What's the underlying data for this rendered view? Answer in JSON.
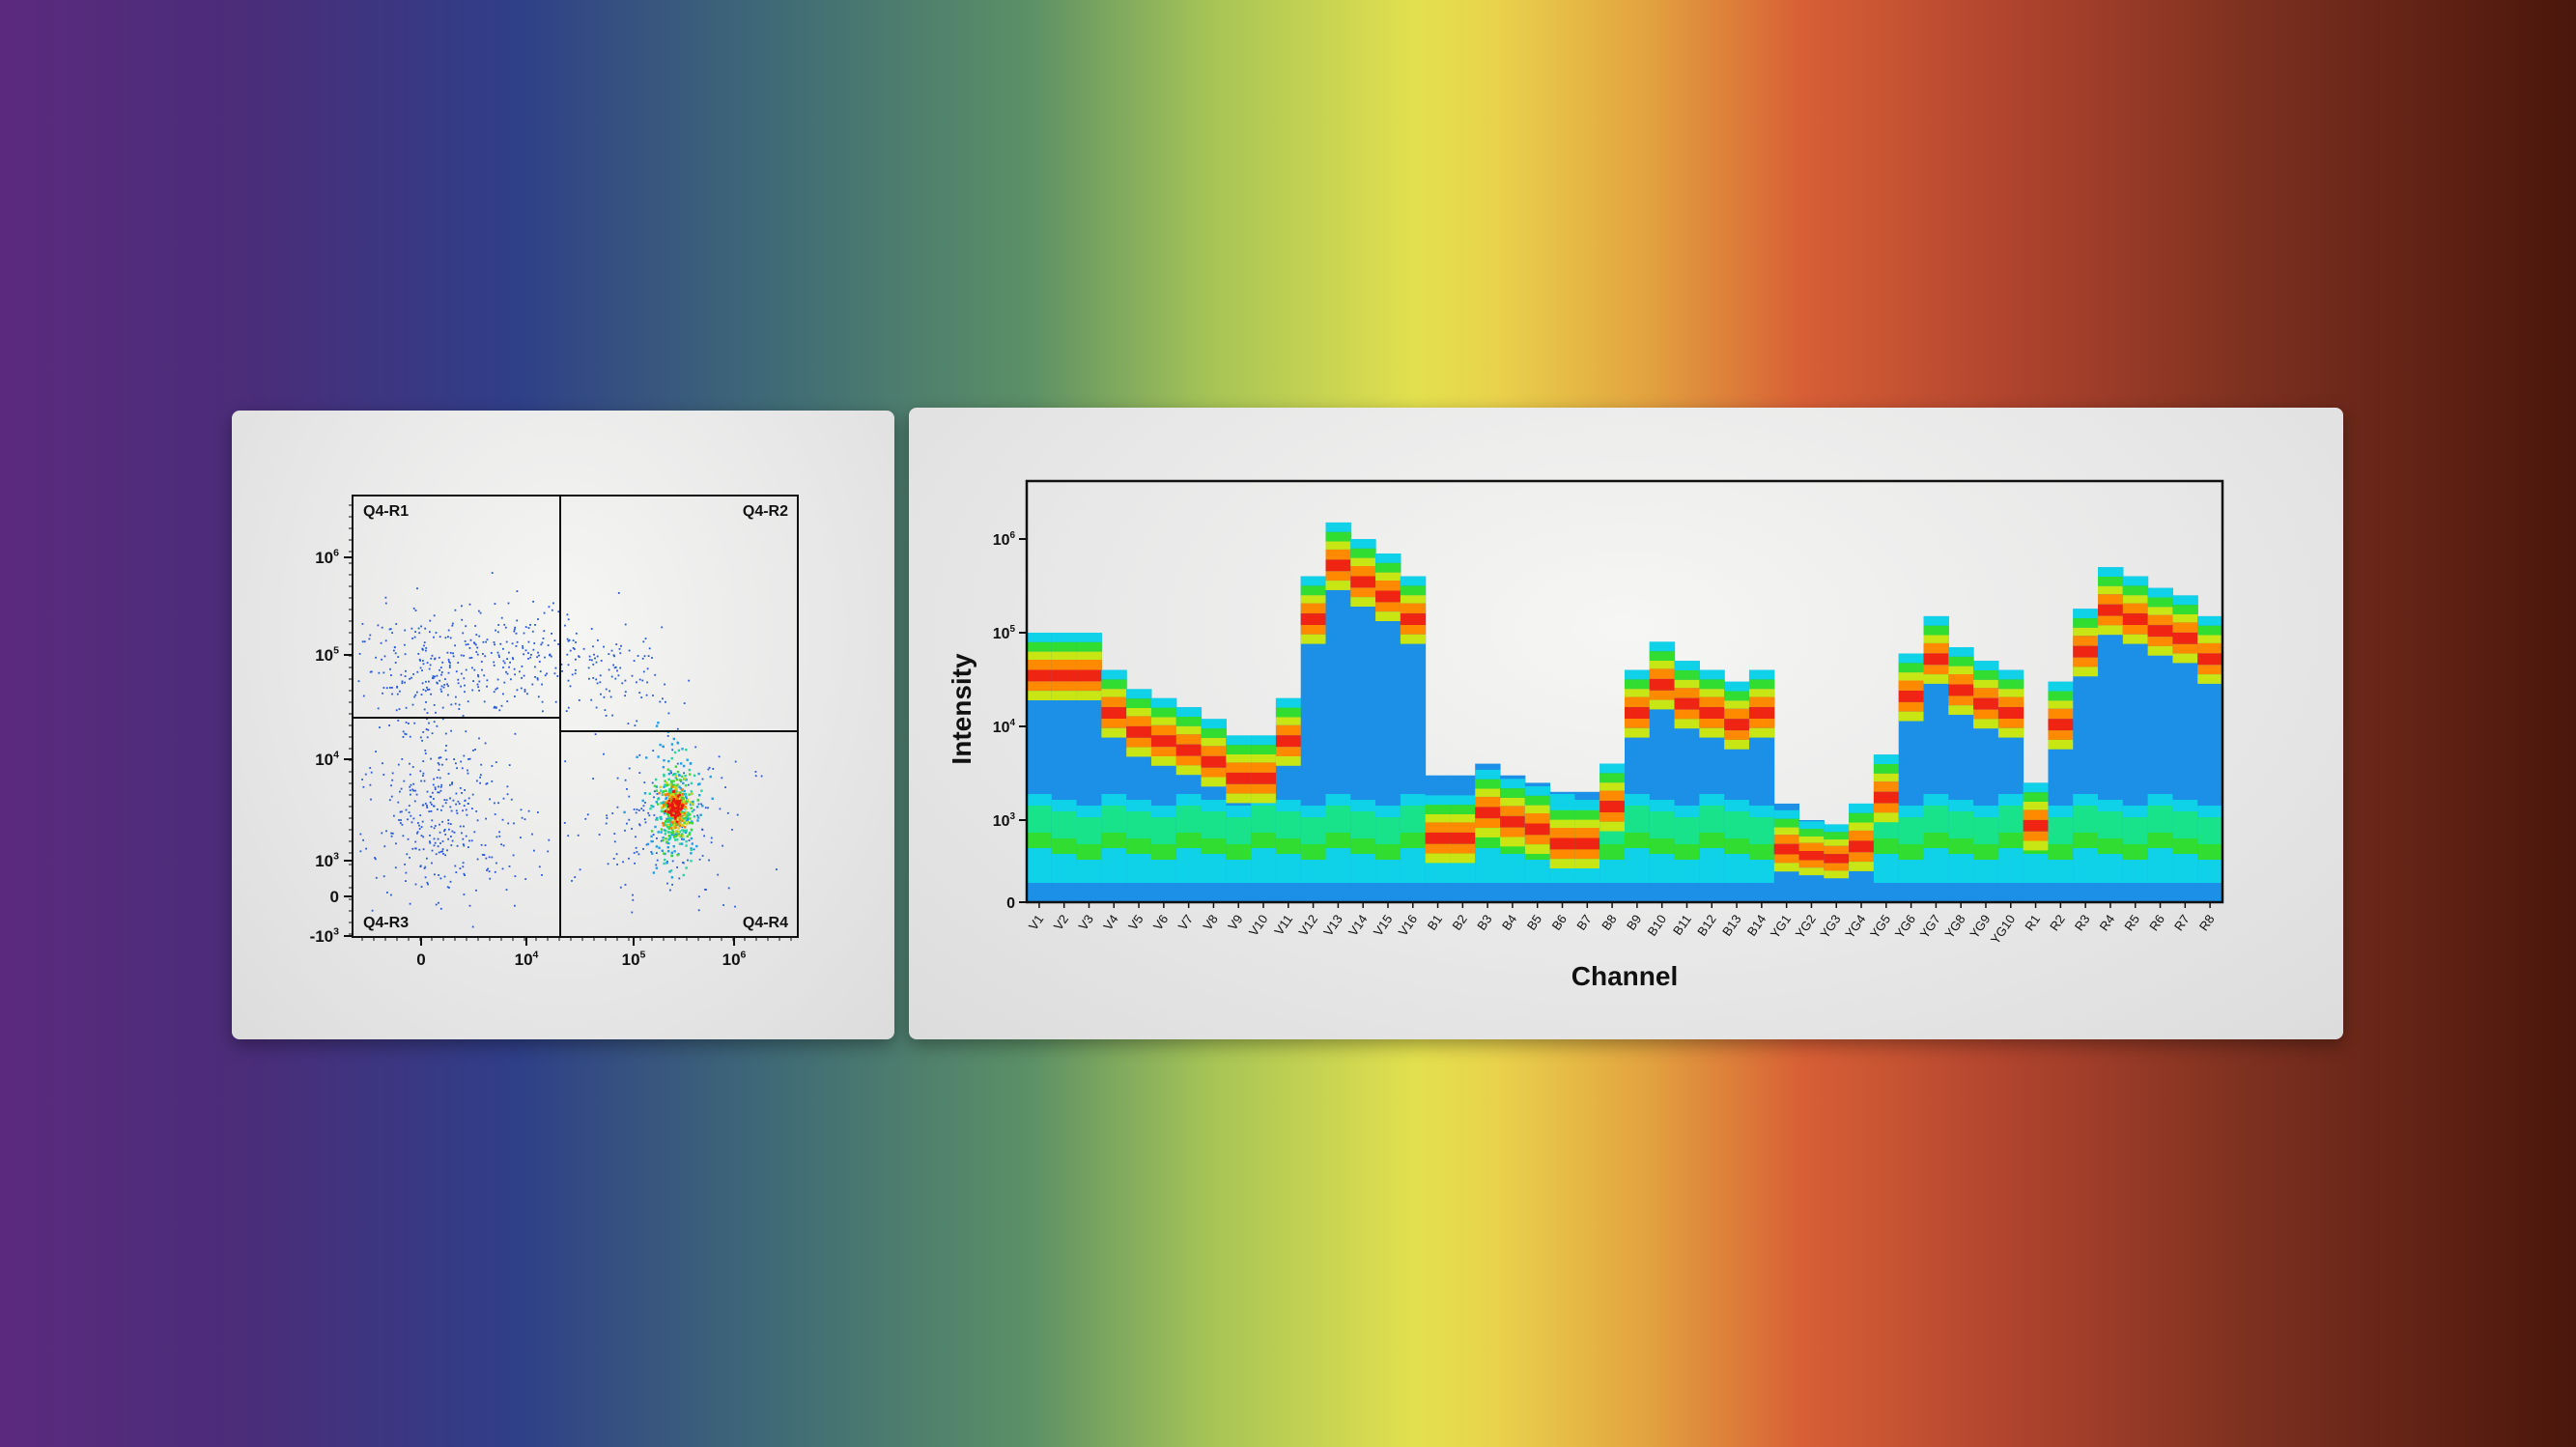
{
  "scatter_panel": {
    "gate_labels": [
      "Q4-R1",
      "Q4-R2",
      "Q4-R3",
      "Q4-R4"
    ],
    "y_ticks": [
      {
        "base": "10",
        "exp": "6"
      },
      {
        "base": "10",
        "exp": "5"
      },
      {
        "base": "10",
        "exp": "4"
      },
      {
        "base": "10",
        "exp": "3"
      },
      {
        "base": "0",
        "exp": ""
      },
      {
        "base": "-10",
        "exp": "3"
      }
    ],
    "x_ticks": [
      {
        "base": "0",
        "exp": ""
      },
      {
        "base": "10",
        "exp": "4"
      },
      {
        "base": "10",
        "exp": "5"
      },
      {
        "base": "10",
        "exp": "6"
      }
    ]
  },
  "chart_data": {
    "type": "heatmap",
    "xlabel": "Channel",
    "ylabel": "Intensity",
    "y_scale": "log",
    "y_ticks": [
      {
        "base": "0",
        "exp": ""
      },
      {
        "base": "10",
        "exp": "3"
      },
      {
        "base": "10",
        "exp": "4"
      },
      {
        "base": "10",
        "exp": "5"
      },
      {
        "base": "10",
        "exp": "6"
      }
    ],
    "categories": [
      "V1",
      "V2",
      "V3",
      "V4",
      "V5",
      "V6",
      "V7",
      "V8",
      "V9",
      "V10",
      "V11",
      "V12",
      "V13",
      "V14",
      "V15",
      "V16",
      "B1",
      "B2",
      "B3",
      "B4",
      "B5",
      "B6",
      "B7",
      "B8",
      "B9",
      "B10",
      "B11",
      "B12",
      "B13",
      "B14",
      "YG1",
      "YG2",
      "YG3",
      "YG4",
      "YG5",
      "YG6",
      "YG7",
      "YG8",
      "YG9",
      "YG10",
      "R1",
      "R2",
      "R3",
      "R4",
      "R5",
      "R6",
      "R7",
      "R8"
    ],
    "max_values": [
      100000,
      100000,
      100000,
      40000,
      25000,
      20000,
      16000,
      12000,
      8000,
      8000,
      20000,
      400000,
      1500000,
      1000000,
      700000,
      400000,
      3000,
      3000,
      4000,
      3000,
      2500,
      2000,
      2000,
      4000,
      40000,
      80000,
      50000,
      40000,
      30000,
      40000,
      1500,
      1000,
      900,
      1500,
      5000,
      60000,
      150000,
      70000,
      50000,
      40000,
      2500,
      30000,
      180000,
      500000,
      400000,
      300000,
      250000,
      150000
    ],
    "peak_values": [
      50000,
      50000,
      50000,
      20000,
      12000,
      10000,
      10000,
      7000,
      4000,
      4000,
      10000,
      200000,
      800000,
      600000,
      400000,
      200000,
      800,
      800,
      1500,
      1200,
      1000,
      700,
      700,
      1800,
      20000,
      40000,
      30000,
      22000,
      18000,
      22000,
      600,
      500,
      500,
      800,
      3000,
      30000,
      80000,
      40000,
      28000,
      22000,
      1200,
      15000,
      100000,
      250000,
      200000,
      150000,
      130000,
      80000
    ],
    "color_scale": [
      "#1c8fe6",
      "#0fd2e8",
      "#19e38a",
      "#30dd30",
      "#c8e614",
      "#ff8a00",
      "#ef2412"
    ]
  }
}
